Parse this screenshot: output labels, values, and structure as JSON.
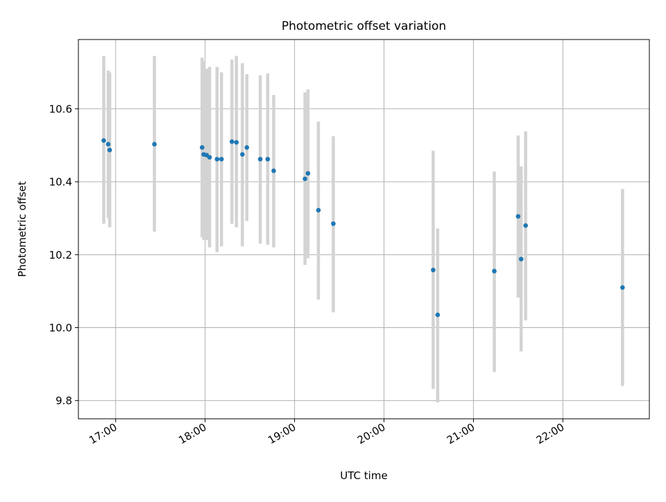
{
  "chart_data": {
    "type": "scatter",
    "title": "Photometric offset variation",
    "xlabel": "UTC time",
    "ylabel": "Photometric offset",
    "grid": true,
    "legend": "none",
    "xlim": [
      "16:35",
      "22:58"
    ],
    "ylim": [
      9.75,
      10.79
    ],
    "xticks": [
      "17:00",
      "18:00",
      "19:00",
      "20:00",
      "21:00",
      "22:00"
    ],
    "yticks": [
      "9.8",
      "10.0",
      "10.2",
      "10.4",
      "10.6"
    ],
    "colors": {
      "point": "#1f77b4",
      "errorbar": "#d3d3d3",
      "grid": "#b0b0b0"
    },
    "series": [
      {
        "points": [
          {
            "x": "16:52",
            "y": 10.513,
            "ylo": 10.285,
            "yhi": 10.745
          },
          {
            "x": "16:55",
            "y": 10.503,
            "ylo": 10.3,
            "yhi": 10.705
          },
          {
            "x": "16:56",
            "y": 10.487,
            "ylo": 10.275,
            "yhi": 10.7
          },
          {
            "x": "17:26",
            "y": 10.503,
            "ylo": 10.263,
            "yhi": 10.745
          },
          {
            "x": "17:58",
            "y": 10.494,
            "ylo": 10.248,
            "yhi": 10.74
          },
          {
            "x": "17:59",
            "y": 10.475,
            "ylo": 10.24,
            "yhi": 10.73
          },
          {
            "x": "18:01",
            "y": 10.473,
            "ylo": 10.24,
            "yhi": 10.71
          },
          {
            "x": "18:03",
            "y": 10.467,
            "ylo": 10.22,
            "yhi": 10.715
          },
          {
            "x": "18:08",
            "y": 10.462,
            "ylo": 10.207,
            "yhi": 10.715
          },
          {
            "x": "18:11",
            "y": 10.462,
            "ylo": 10.223,
            "yhi": 10.7
          },
          {
            "x": "18:18",
            "y": 10.51,
            "ylo": 10.285,
            "yhi": 10.735
          },
          {
            "x": "18:21",
            "y": 10.508,
            "ylo": 10.275,
            "yhi": 10.745
          },
          {
            "x": "18:25",
            "y": 10.475,
            "ylo": 10.223,
            "yhi": 10.725
          },
          {
            "x": "18:28",
            "y": 10.494,
            "ylo": 10.292,
            "yhi": 10.695
          },
          {
            "x": "18:37",
            "y": 10.462,
            "ylo": 10.23,
            "yhi": 10.692
          },
          {
            "x": "18:42",
            "y": 10.462,
            "ylo": 10.227,
            "yhi": 10.697
          },
          {
            "x": "18:46",
            "y": 10.43,
            "ylo": 10.22,
            "yhi": 10.638
          },
          {
            "x": "19:07",
            "y": 10.408,
            "ylo": 10.172,
            "yhi": 10.645
          },
          {
            "x": "19:09",
            "y": 10.423,
            "ylo": 10.19,
            "yhi": 10.653
          },
          {
            "x": "19:16",
            "y": 10.322,
            "ylo": 10.077,
            "yhi": 10.565
          },
          {
            "x": "19:26",
            "y": 10.285,
            "ylo": 10.042,
            "yhi": 10.525
          },
          {
            "x": "20:33",
            "y": 10.158,
            "ylo": 9.832,
            "yhi": 10.485
          },
          {
            "x": "20:36",
            "y": 10.035,
            "ylo": 9.795,
            "yhi": 10.272
          },
          {
            "x": "21:14",
            "y": 10.155,
            "ylo": 9.878,
            "yhi": 10.428
          },
          {
            "x": "21:30",
            "y": 10.305,
            "ylo": 10.082,
            "yhi": 10.527
          },
          {
            "x": "21:32",
            "y": 10.188,
            "ylo": 9.935,
            "yhi": 10.442
          },
          {
            "x": "21:35",
            "y": 10.28,
            "ylo": 10.02,
            "yhi": 10.538
          },
          {
            "x": "22:40",
            "y": 10.11,
            "ylo": 9.84,
            "yhi": 10.38
          }
        ]
      }
    ]
  }
}
